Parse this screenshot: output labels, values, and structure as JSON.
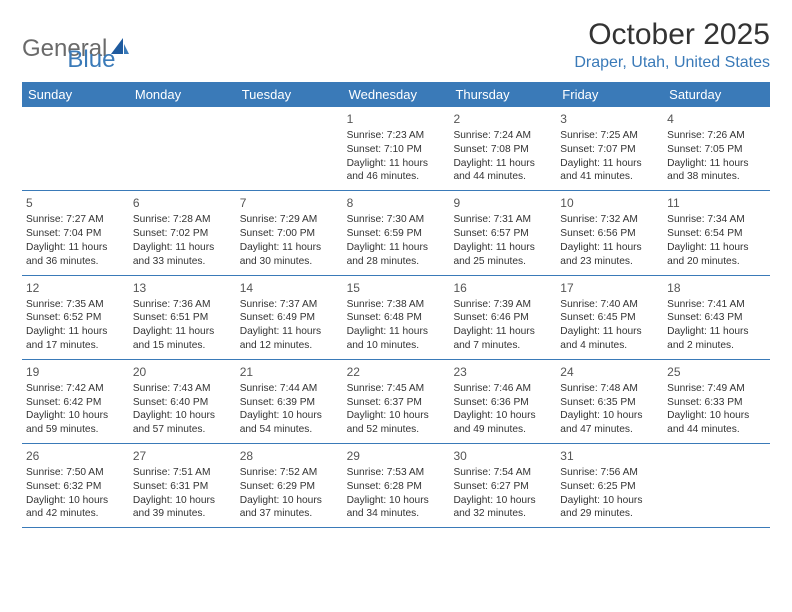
{
  "logo": {
    "part1": "General",
    "part2": "Blue"
  },
  "title": "October 2025",
  "location": "Draper, Utah, United States",
  "colors": {
    "accent": "#3a7ab8",
    "text": "#333333",
    "bg": "#ffffff"
  },
  "weekdays": [
    "Sunday",
    "Monday",
    "Tuesday",
    "Wednesday",
    "Thursday",
    "Friday",
    "Saturday"
  ],
  "weeks": [
    [
      null,
      null,
      null,
      {
        "n": "1",
        "sr": "7:23 AM",
        "ss": "7:10 PM",
        "dl": "11 hours and 46 minutes."
      },
      {
        "n": "2",
        "sr": "7:24 AM",
        "ss": "7:08 PM",
        "dl": "11 hours and 44 minutes."
      },
      {
        "n": "3",
        "sr": "7:25 AM",
        "ss": "7:07 PM",
        "dl": "11 hours and 41 minutes."
      },
      {
        "n": "4",
        "sr": "7:26 AM",
        "ss": "7:05 PM",
        "dl": "11 hours and 38 minutes."
      }
    ],
    [
      {
        "n": "5",
        "sr": "7:27 AM",
        "ss": "7:04 PM",
        "dl": "11 hours and 36 minutes."
      },
      {
        "n": "6",
        "sr": "7:28 AM",
        "ss": "7:02 PM",
        "dl": "11 hours and 33 minutes."
      },
      {
        "n": "7",
        "sr": "7:29 AM",
        "ss": "7:00 PM",
        "dl": "11 hours and 30 minutes."
      },
      {
        "n": "8",
        "sr": "7:30 AM",
        "ss": "6:59 PM",
        "dl": "11 hours and 28 minutes."
      },
      {
        "n": "9",
        "sr": "7:31 AM",
        "ss": "6:57 PM",
        "dl": "11 hours and 25 minutes."
      },
      {
        "n": "10",
        "sr": "7:32 AM",
        "ss": "6:56 PM",
        "dl": "11 hours and 23 minutes."
      },
      {
        "n": "11",
        "sr": "7:34 AM",
        "ss": "6:54 PM",
        "dl": "11 hours and 20 minutes."
      }
    ],
    [
      {
        "n": "12",
        "sr": "7:35 AM",
        "ss": "6:52 PM",
        "dl": "11 hours and 17 minutes."
      },
      {
        "n": "13",
        "sr": "7:36 AM",
        "ss": "6:51 PM",
        "dl": "11 hours and 15 minutes."
      },
      {
        "n": "14",
        "sr": "7:37 AM",
        "ss": "6:49 PM",
        "dl": "11 hours and 12 minutes."
      },
      {
        "n": "15",
        "sr": "7:38 AM",
        "ss": "6:48 PM",
        "dl": "11 hours and 10 minutes."
      },
      {
        "n": "16",
        "sr": "7:39 AM",
        "ss": "6:46 PM",
        "dl": "11 hours and 7 minutes."
      },
      {
        "n": "17",
        "sr": "7:40 AM",
        "ss": "6:45 PM",
        "dl": "11 hours and 4 minutes."
      },
      {
        "n": "18",
        "sr": "7:41 AM",
        "ss": "6:43 PM",
        "dl": "11 hours and 2 minutes."
      }
    ],
    [
      {
        "n": "19",
        "sr": "7:42 AM",
        "ss": "6:42 PM",
        "dl": "10 hours and 59 minutes."
      },
      {
        "n": "20",
        "sr": "7:43 AM",
        "ss": "6:40 PM",
        "dl": "10 hours and 57 minutes."
      },
      {
        "n": "21",
        "sr": "7:44 AM",
        "ss": "6:39 PM",
        "dl": "10 hours and 54 minutes."
      },
      {
        "n": "22",
        "sr": "7:45 AM",
        "ss": "6:37 PM",
        "dl": "10 hours and 52 minutes."
      },
      {
        "n": "23",
        "sr": "7:46 AM",
        "ss": "6:36 PM",
        "dl": "10 hours and 49 minutes."
      },
      {
        "n": "24",
        "sr": "7:48 AM",
        "ss": "6:35 PM",
        "dl": "10 hours and 47 minutes."
      },
      {
        "n": "25",
        "sr": "7:49 AM",
        "ss": "6:33 PM",
        "dl": "10 hours and 44 minutes."
      }
    ],
    [
      {
        "n": "26",
        "sr": "7:50 AM",
        "ss": "6:32 PM",
        "dl": "10 hours and 42 minutes."
      },
      {
        "n": "27",
        "sr": "7:51 AM",
        "ss": "6:31 PM",
        "dl": "10 hours and 39 minutes."
      },
      {
        "n": "28",
        "sr": "7:52 AM",
        "ss": "6:29 PM",
        "dl": "10 hours and 37 minutes."
      },
      {
        "n": "29",
        "sr": "7:53 AM",
        "ss": "6:28 PM",
        "dl": "10 hours and 34 minutes."
      },
      {
        "n": "30",
        "sr": "7:54 AM",
        "ss": "6:27 PM",
        "dl": "10 hours and 32 minutes."
      },
      {
        "n": "31",
        "sr": "7:56 AM",
        "ss": "6:25 PM",
        "dl": "10 hours and 29 minutes."
      },
      null
    ]
  ],
  "labels": {
    "sunrise": "Sunrise:",
    "sunset": "Sunset:",
    "daylight": "Daylight:"
  }
}
